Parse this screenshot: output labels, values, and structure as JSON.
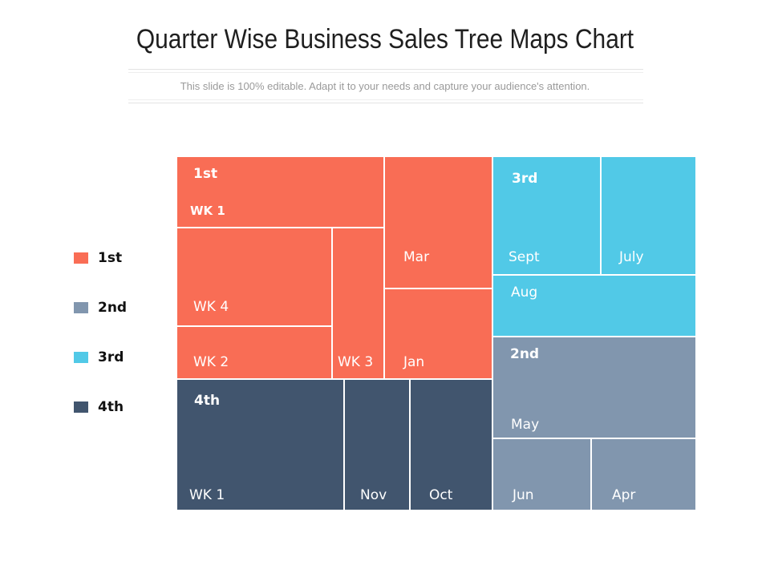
{
  "title": "Quarter Wise Business Sales Tree Maps Chart",
  "subtitle": "This slide is 100% editable. Adapt it to your needs and capture your audience's attention.",
  "colors": {
    "q1": "#f96d55",
    "q2": "#8196ae",
    "q3": "#51c9e7",
    "q4": "#41556e",
    "divider": "#ffffff"
  },
  "legend": [
    {
      "label": "1st",
      "color": "#f96d55"
    },
    {
      "label": "2nd",
      "color": "#8196ae"
    },
    {
      "label": "3rd",
      "color": "#51c9e7"
    },
    {
      "label": "4th",
      "color": "#41556e"
    }
  ],
  "chart_data": {
    "type": "treemap",
    "title": "Quarter Wise Business Sales Tree Maps Chart",
    "groups": [
      {
        "name": "1st",
        "color": "#f96d55",
        "items": [
          {
            "label": "WK 1"
          },
          {
            "label": "Mar"
          },
          {
            "label": "WK 4"
          },
          {
            "label": "WK 3"
          },
          {
            "label": "WK 2"
          },
          {
            "label": "Jan"
          }
        ]
      },
      {
        "name": "3rd",
        "color": "#51c9e7",
        "items": [
          {
            "label": "Sept"
          },
          {
            "label": "July"
          },
          {
            "label": "Aug"
          }
        ]
      },
      {
        "name": "2nd",
        "color": "#8196ae",
        "items": [
          {
            "label": "May"
          },
          {
            "label": "Jun"
          },
          {
            "label": "Apr"
          }
        ]
      },
      {
        "name": "4th",
        "color": "#41556e",
        "items": [
          {
            "label": "WK 1"
          },
          {
            "label": "Nov"
          },
          {
            "label": "Oct"
          }
        ]
      }
    ]
  }
}
